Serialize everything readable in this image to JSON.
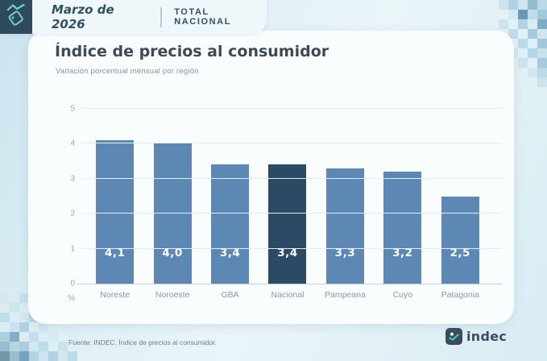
{
  "header": {
    "period": "Marzo de 2026",
    "scope": "TOTAL NACIONAL",
    "icon": "price-tag-trend-icon"
  },
  "card": {
    "title": "Índice de precios al consumidor",
    "subtitle": "Variación porcentual mensual por región"
  },
  "chart_data": {
    "type": "bar",
    "title": "Índice de precios al consumidor",
    "subtitle": "Variación porcentual mensual por región",
    "categories": [
      "Noreste",
      "Noroeste",
      "GBA",
      "Nacional",
      "Pampeana",
      "Cuyo",
      "Patagonia"
    ],
    "values": [
      4.1,
      4.0,
      3.4,
      3.4,
      3.3,
      3.2,
      2.5
    ],
    "value_labels": [
      "4,1",
      "4,0",
      "3,4",
      "3,4",
      "3,3",
      "3,2",
      "2,5"
    ],
    "highlight_category": "Nacional",
    "xlabel": "",
    "ylabel": "%",
    "ylim": [
      0,
      5
    ],
    "yticks": [
      0,
      1,
      2,
      3,
      4,
      5
    ],
    "grid": true,
    "legend": "none",
    "colors": {
      "bar": "#5d88b3",
      "highlight": "#2c4a63",
      "value_label": "#ffffff"
    }
  },
  "footer": {
    "source": "Fuente: INDEC. Índice de precios al consumidor.",
    "logo_text": "indec",
    "logo_icon": "indec-logo-icon"
  }
}
